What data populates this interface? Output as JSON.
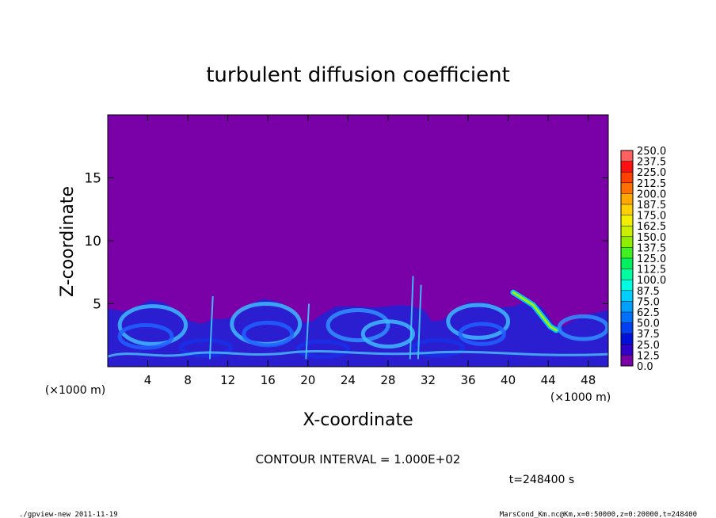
{
  "chart_data": {
    "type": "heatmap",
    "title": "turbulent diffusion coefficient",
    "xlabel": "X-coordinate",
    "ylabel": "Z-coordinate",
    "x_unit_left": "(×1000 m)",
    "x_unit_right": "(×1000 m)",
    "xlim": [
      0,
      50
    ],
    "ylim": [
      0,
      20
    ],
    "x_ticks": [
      4,
      8,
      12,
      16,
      20,
      24,
      28,
      32,
      36,
      40,
      44,
      48
    ],
    "y_ticks": [
      5,
      10,
      15
    ],
    "x_tick_labels": [
      "4",
      "8",
      "12",
      "16",
      "20",
      "24",
      "28",
      "32",
      "36",
      "40",
      "44",
      "48"
    ],
    "y_tick_labels": [
      "5",
      "10",
      "15"
    ],
    "contour_interval_text": "CONTOUR INTERVAL = 1.000E+02",
    "time_text": "t=248400 s",
    "footer_left": "./gpview-new  2011-11-19",
    "footer_right": "MarsCond_Km.nc@Km,x=0:50000,z=0:20000,t=248400",
    "colorbar": {
      "levels": [
        "0.0",
        "12.5",
        "25.0",
        "37.5",
        "50.0",
        "62.5",
        "75.0",
        "87.5",
        "100.0",
        "112.5",
        "125.0",
        "137.5",
        "150.0",
        "162.5",
        "175.0",
        "187.5",
        "200.0",
        "212.5",
        "225.0",
        "237.5",
        "250.0"
      ],
      "colors": [
        "#7a00a8",
        "#3000c8",
        "#0010d8",
        "#0040f0",
        "#0070ff",
        "#00a0ff",
        "#00d0ff",
        "#00ffe0",
        "#00ffa0",
        "#00f060",
        "#40f020",
        "#90ee00",
        "#c8f000",
        "#f0f000",
        "#ffd000",
        "#ffa800",
        "#ff7000",
        "#ff4000",
        "#ff1010",
        "#ff6060"
      ]
    },
    "background_color": "#7a00a8"
  }
}
